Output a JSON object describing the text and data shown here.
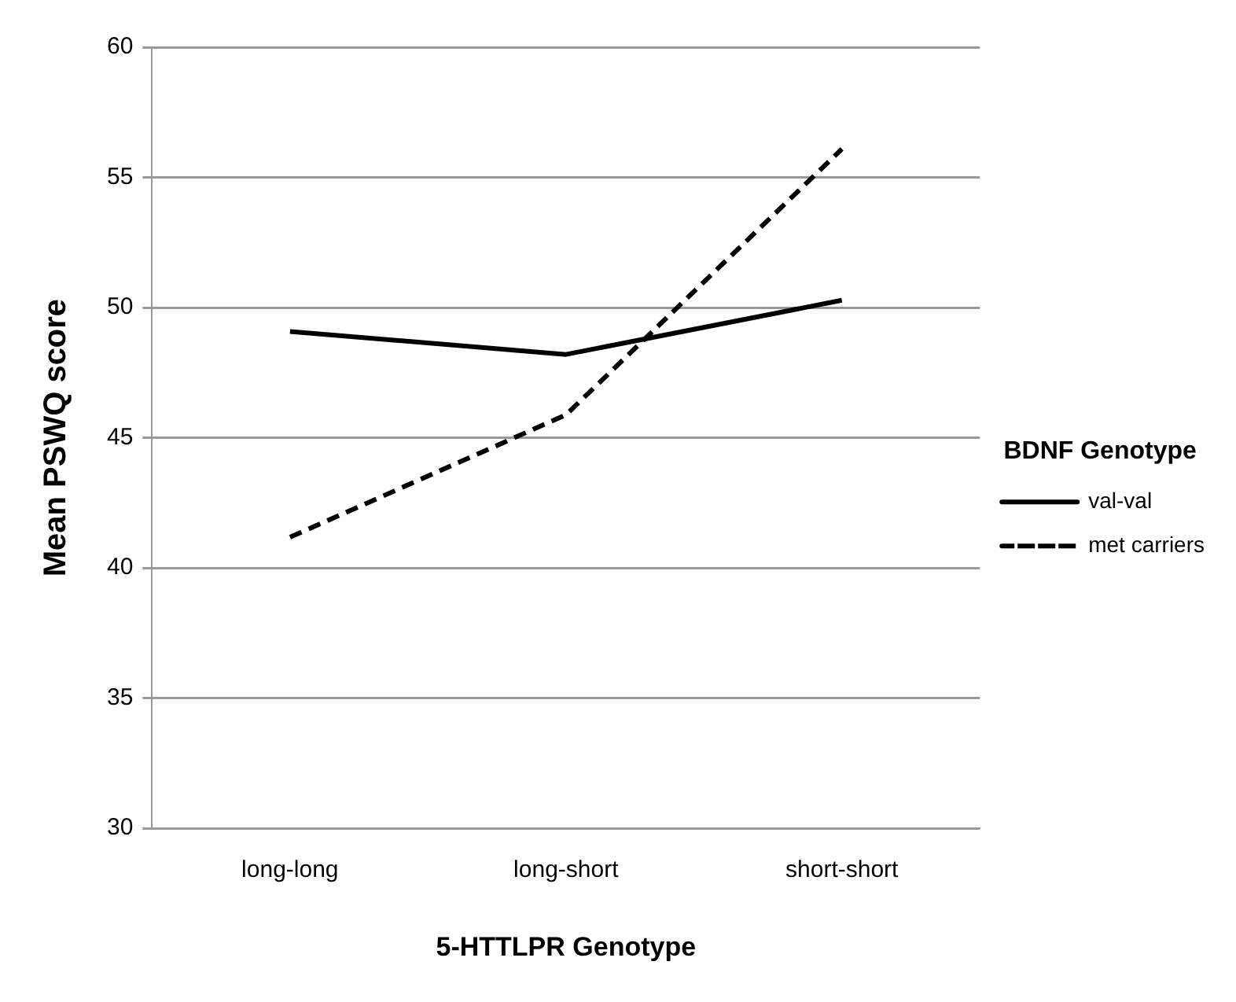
{
  "chart_data": {
    "type": "line",
    "xlabel": "5-HTTLPR Genotype",
    "ylabel": "Mean PSWQ score",
    "legend_title": "BDNF Genotype",
    "categories": [
      "long-long",
      "long-short",
      "short-short"
    ],
    "series": [
      {
        "name": "val-val",
        "color": "#000000",
        "values": [
          49.08,
          48.2,
          50.28
        ],
        "line_style": "solid"
      },
      {
        "name": "met carriers",
        "color": "#000000",
        "values": [
          41.18,
          45.88,
          56.09
        ],
        "line_style": "dashed"
      }
    ],
    "ylim": [
      30,
      60
    ],
    "yticks": [
      30,
      35,
      40,
      45,
      50,
      55,
      60
    ],
    "grid": "y",
    "legend": "right",
    "marker": "none"
  }
}
